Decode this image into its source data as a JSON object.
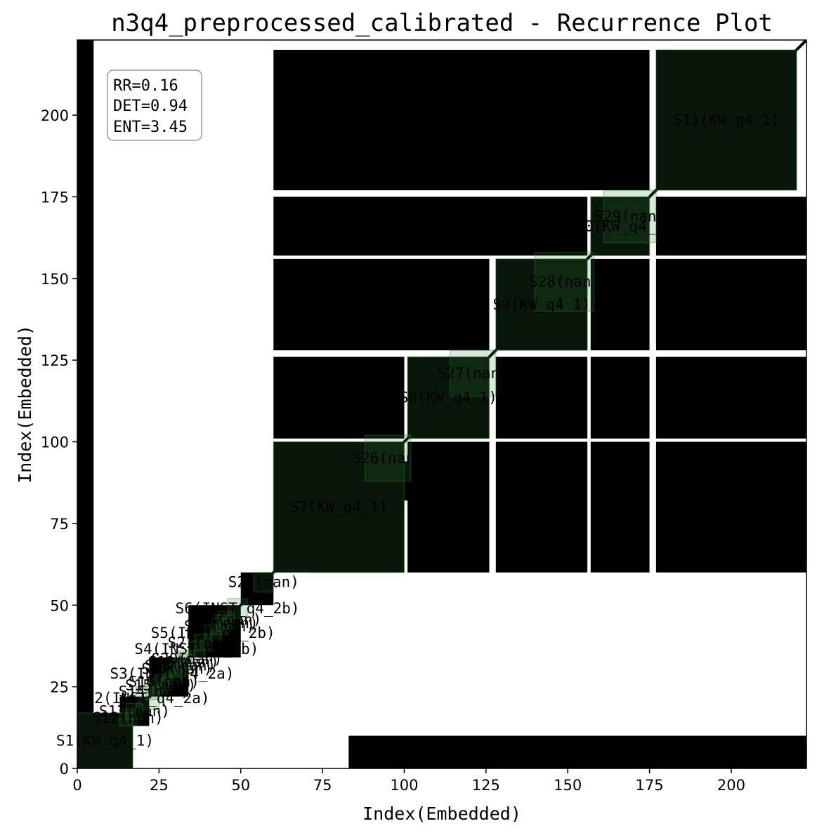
{
  "chart_data": {
    "type": "heatmap",
    "subtype": "recurrence-plot",
    "title": "n3q4_preprocessed_calibrated - Recurrence Plot",
    "xlabel": "Index(Embedded)",
    "ylabel": "Index(Embedded)",
    "xlim": [
      0,
      223
    ],
    "ylim": [
      0,
      223
    ],
    "xticks": [
      0,
      25,
      50,
      75,
      100,
      125,
      150,
      175,
      200
    ],
    "yticks": [
      0,
      25,
      50,
      75,
      100,
      125,
      150,
      175,
      200
    ],
    "grid": false,
    "colors": {
      "recurrence": "#000000",
      "segment_fill": "#2e7d32",
      "segment_edge": "#2e7d32",
      "stats_box_edge": "#999999"
    },
    "stats": [
      "RR=0.16",
      "DET=0.94",
      "ENT=3.45"
    ],
    "segments": [
      {
        "label": "S1(KW_q4_1)",
        "start": 0,
        "end": 17
      },
      {
        "label": "S12(nan)",
        "start": 13,
        "end": 18
      },
      {
        "label": "S13(nan)",
        "start": 15,
        "end": 20
      },
      {
        "label": "S2(INST_q4_2a)",
        "start": 18,
        "end": 25
      },
      {
        "label": "S14(nan)",
        "start": 21,
        "end": 26
      },
      {
        "label": "S15(nan)",
        "start": 23,
        "end": 28
      },
      {
        "label": "S16(nan)",
        "start": 24,
        "end": 29
      },
      {
        "label": "S3(INST_q4_2a)",
        "start": 26,
        "end": 32
      },
      {
        "label": "S17(nan)",
        "start": 28,
        "end": 33
      },
      {
        "label": "S18(nan)",
        "start": 29,
        "end": 34
      },
      {
        "label": "S19(nan)",
        "start": 30,
        "end": 35
      },
      {
        "label": "S20(nan)",
        "start": 31,
        "end": 36
      },
      {
        "label": "S4(INST_q4_2b)",
        "start": 34,
        "end": 39
      },
      {
        "label": "S21(nan)",
        "start": 36,
        "end": 41
      },
      {
        "label": "S5(INST_q4_2b)",
        "start": 39,
        "end": 44
      },
      {
        "label": "S22(nan)",
        "start": 41,
        "end": 46
      },
      {
        "label": "S23(nan)",
        "start": 42,
        "end": 47
      },
      {
        "label": "S24(nan)",
        "start": 43,
        "end": 48
      },
      {
        "label": "S6(INST_q4_2b)",
        "start": 46,
        "end": 52
      },
      {
        "label": "S25(nan)",
        "start": 54,
        "end": 60
      },
      {
        "label": "S7(KW_q4_1)",
        "start": 60,
        "end": 100
      },
      {
        "label": "S26(nan)",
        "start": 88,
        "end": 102
      },
      {
        "label": "S8(KW_q4_1)",
        "start": 101,
        "end": 126
      },
      {
        "label": "S27(nan)",
        "start": 114,
        "end": 128
      },
      {
        "label": "S9(KW_q4_1)",
        "start": 128,
        "end": 156
      },
      {
        "label": "S28(nan)",
        "start": 140,
        "end": 158
      },
      {
        "label": "S10(KW_q4_1)",
        "start": 157,
        "end": 175
      },
      {
        "label": "S29(nan)",
        "start": 161,
        "end": 177
      },
      {
        "label": "S11(KW_q4_1)",
        "start": 177,
        "end": 220
      }
    ],
    "recurrence_blocks": [
      [
        0,
        0,
        17,
        17
      ],
      [
        13,
        13,
        22,
        22
      ],
      [
        22,
        22,
        34,
        34
      ],
      [
        34,
        34,
        50,
        50
      ],
      [
        50,
        50,
        60,
        60
      ],
      [
        60,
        60,
        100,
        100
      ],
      [
        101,
        101,
        126,
        126
      ],
      [
        128,
        128,
        156,
        156
      ],
      [
        157,
        157,
        175,
        175
      ],
      [
        177,
        177,
        220,
        220
      ],
      [
        70,
        60,
        100,
        75
      ],
      [
        92,
        82,
        102,
        94
      ],
      [
        101,
        60,
        126,
        100
      ],
      [
        128,
        60,
        156,
        100
      ],
      [
        157,
        60,
        175,
        100
      ],
      [
        177,
        60,
        223,
        100
      ],
      [
        128,
        101,
        156,
        126
      ],
      [
        157,
        101,
        175,
        126
      ],
      [
        177,
        101,
        223,
        126
      ],
      [
        157,
        128,
        175,
        156
      ],
      [
        177,
        128,
        223,
        156
      ],
      [
        177,
        157,
        223,
        175
      ],
      [
        60,
        101,
        100,
        126
      ],
      [
        60,
        128,
        126,
        156
      ],
      [
        60,
        157,
        156,
        175
      ],
      [
        60,
        177,
        175,
        220
      ],
      [
        0,
        1,
        5,
        223
      ],
      [
        83,
        0,
        223,
        10
      ]
    ]
  }
}
